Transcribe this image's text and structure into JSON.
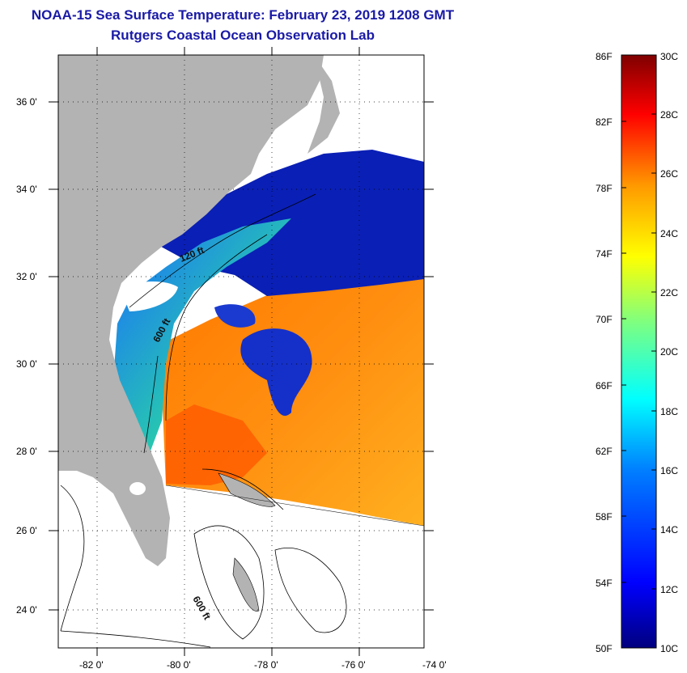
{
  "header": {
    "title": "NOAA-15 Sea Surface Temperature:  February 23, 2019 1208 GMT",
    "subtitle": "Rutgers Coastal Ocean Observation Lab"
  },
  "map": {
    "lat_labels": [
      "36 0'",
      "34 0'",
      "32 0'",
      "30 0'",
      "28 0'",
      "26 0'",
      "24 0'"
    ],
    "lon_labels": [
      "-82 0'",
      "-80 0'",
      "-78 0'",
      "-76 0'",
      "-74 0'"
    ],
    "contours": {
      "shelf_40ft": "120 ft",
      "shelf_600ft": "600 ft",
      "bahamas_600ft": "600 ft"
    }
  },
  "colorbar": {
    "fahrenheit_labels": [
      "86F",
      "82F",
      "78F",
      "74F",
      "70F",
      "66F",
      "62F",
      "58F",
      "54F",
      "50F"
    ],
    "celsius_labels": [
      "30C",
      "28C",
      "26C",
      "24C",
      "22C",
      "20C",
      "18C",
      "16C",
      "14C",
      "12C",
      "10C"
    ],
    "range_celsius": [
      10,
      30
    ],
    "range_fahrenheit": [
      50,
      86
    ],
    "colors": [
      "#00007f",
      "#0000ff",
      "#007fff",
      "#00ffff",
      "#7fff7f",
      "#ffff00",
      "#ff7f00",
      "#ff0000",
      "#7f0000"
    ]
  },
  "palette": {
    "land": "#b3b3b3",
    "title_color": "#1a1aa6",
    "cold_water": "#0a1fb5",
    "warm_water": "#ff8c00"
  }
}
